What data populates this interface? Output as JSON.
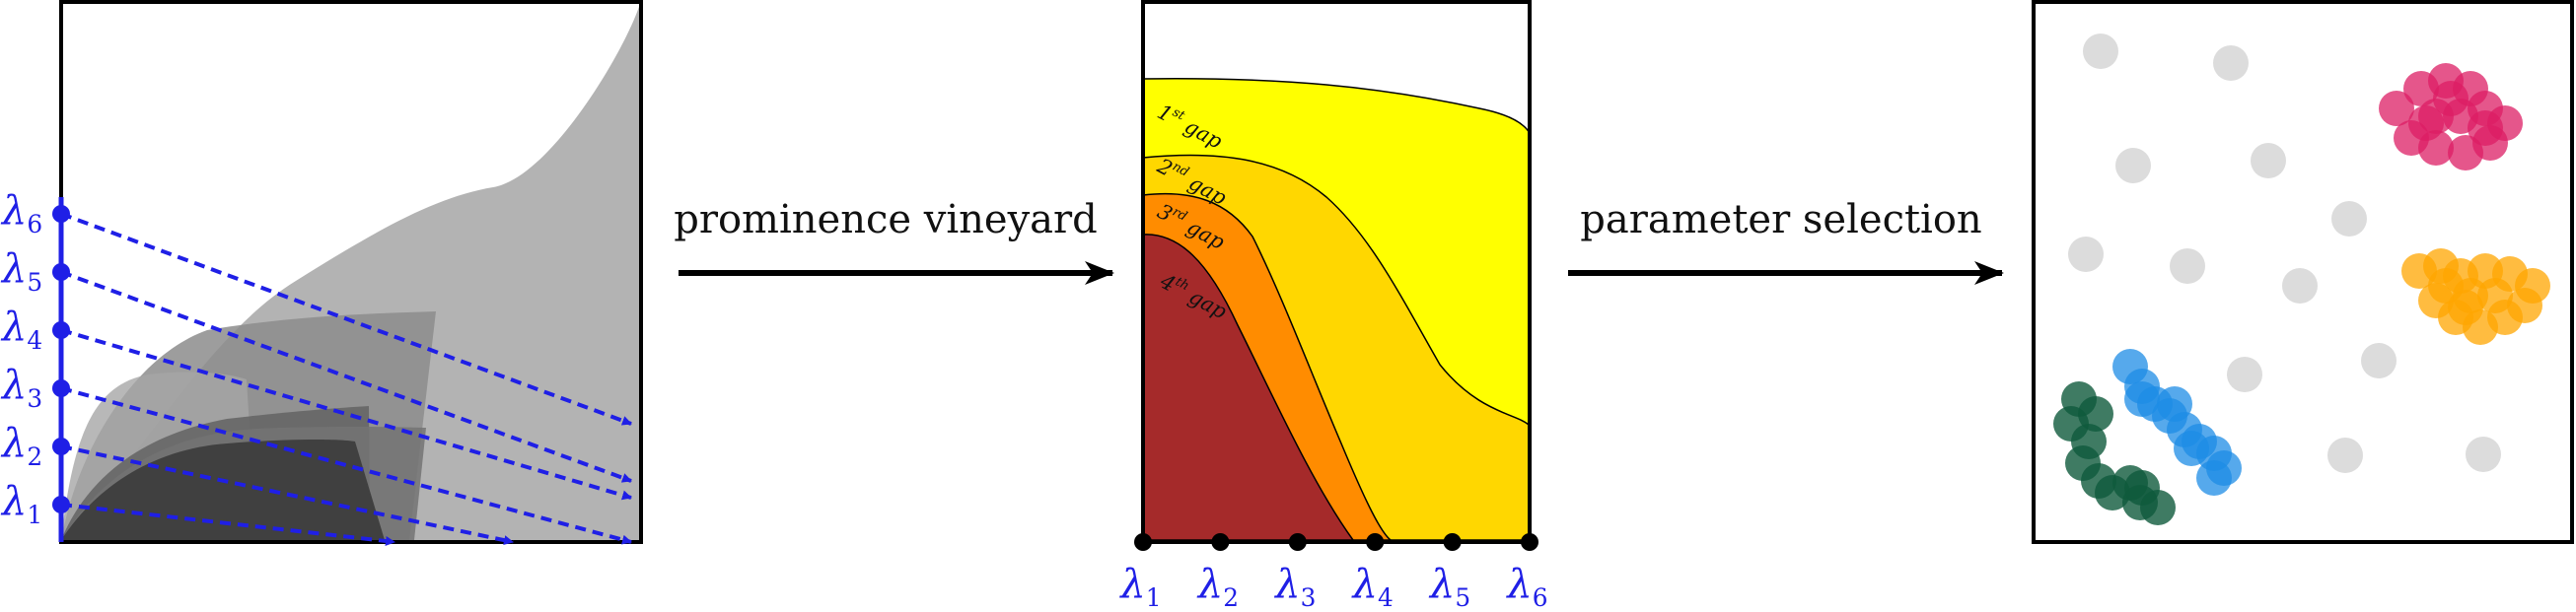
{
  "arrows": {
    "first_label": "prominence vineyard",
    "second_label": "parameter selection"
  },
  "lambda": {
    "symbol": "λ",
    "indices": [
      "1",
      "2",
      "3",
      "4",
      "5",
      "6"
    ]
  },
  "gaps": [
    {
      "number": "1",
      "suffix": "st",
      "word": "gap",
      "color": "#ffff00"
    },
    {
      "number": "2",
      "suffix": "nd",
      "word": "gap",
      "color": "#ffd700"
    },
    {
      "number": "3",
      "suffix": "rd",
      "word": "gap",
      "color": "#ff8c00"
    },
    {
      "number": "4",
      "suffix": "th",
      "word": "gap",
      "color": "#a52a2a"
    }
  ],
  "colors": {
    "lambda_blue": "#1f1fe6",
    "cluster_pink": "#dc1e64",
    "cluster_orange": "#ffa500",
    "cluster_blue": "#1e8ce6",
    "cluster_green": "#0f5a3c",
    "noise_gray": "#dcdcdc"
  }
}
